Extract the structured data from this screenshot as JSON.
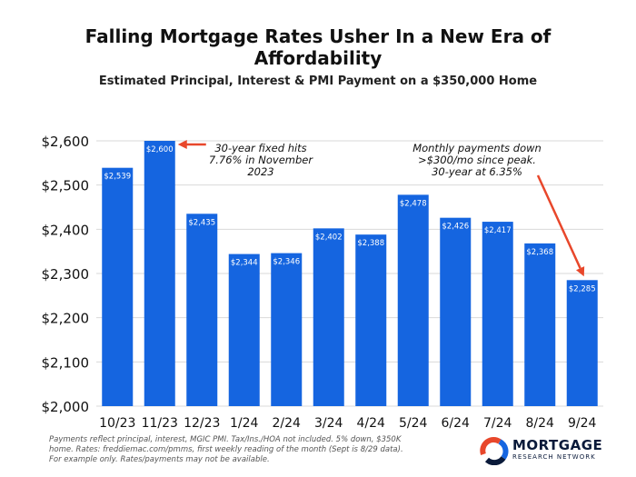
{
  "chart_data": {
    "type": "bar",
    "title": "Falling Mortgage Rates Usher In a New Era of Affordability",
    "subtitle": "Estimated Principal, Interest & PMI Payment on a $350,000 Home",
    "categories": [
      "10/23",
      "11/23",
      "12/23",
      "1/24",
      "2/24",
      "3/24",
      "4/24",
      "5/24",
      "6/24",
      "7/24",
      "8/24",
      "9/24"
    ],
    "values": [
      2539,
      2600,
      2435,
      2344,
      2346,
      2402,
      2388,
      2478,
      2426,
      2417,
      2368,
      2285
    ],
    "data_labels": [
      "$2,539",
      "$2,600",
      "$2,435",
      "$2,344",
      "$2,346",
      "$2,402",
      "$2,388",
      "$2,478",
      "$2,426",
      "$2,417",
      "$2,368",
      "$2,285"
    ],
    "ylim": [
      2000,
      2600
    ],
    "yticks": [
      2000,
      2100,
      2200,
      2300,
      2400,
      2500,
      2600
    ],
    "ytick_labels": [
      "$2,000",
      "$2,100",
      "$2,200",
      "$2,300",
      "$2,400",
      "$2,500",
      "$2,600"
    ],
    "xlabel": "",
    "ylabel": "",
    "grid": true,
    "bar_color": "#1565e0",
    "annotations": [
      {
        "target_category": "11/23",
        "lines": [
          "30-year fixed hits",
          "7.76% in November",
          "2023"
        ],
        "arrow_color": "#e8472b"
      },
      {
        "target_category": "9/24",
        "lines": [
          "Monthly payments down",
          ">$300/mo since peak.",
          "30-year at 6.35%"
        ],
        "arrow_color": "#e8472b"
      }
    ]
  },
  "footnote": [
    "Payments reflect principal, interest, MGIC PMI. Tax/Ins./HOA not included. 5% down, $350K",
    "home. Rates: freddiemac.com/pmms, first weekly reading of the month (Sept is 8/29 data).",
    "For example only. Rates/payments may not be available."
  ],
  "logo": {
    "word": "MORTGAGE",
    "subword": "RESEARCH NETWORK",
    "colors": [
      "#e8472b",
      "#1565e0",
      "#0a1a3a"
    ]
  }
}
